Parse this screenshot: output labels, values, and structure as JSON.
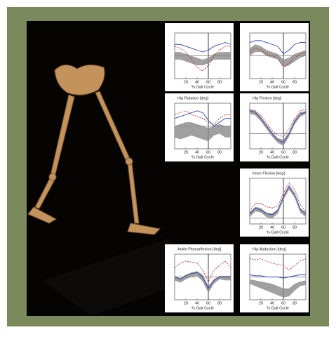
{
  "chart_data": [
    {
      "type": "line",
      "x_label": "% Gait Cycle",
      "x": [
        0,
        10,
        20,
        30,
        40,
        50,
        60,
        70,
        80,
        90,
        100
      ],
      "xlim": [
        0,
        100
      ],
      "xticks": [
        20,
        40,
        60,
        80
      ],
      "ylim": [
        -12,
        12
      ],
      "event_x": 60,
      "band_high": [
        2,
        2,
        1,
        0,
        -1,
        -2,
        -1,
        1,
        2,
        2,
        2
      ],
      "band_low": [
        -2,
        -2,
        -3,
        -4,
        -5,
        -5,
        -4,
        -2,
        -2,
        -2,
        -2
      ],
      "series": [
        {
          "color": "#c03030",
          "values": [
            5,
            4,
            2,
            -2,
            -6,
            -8,
            -5,
            0,
            3,
            5,
            5
          ]
        },
        {
          "color": "#3040b0",
          "values": [
            6,
            6,
            5,
            4,
            3,
            2,
            3,
            5,
            6,
            7,
            6
          ]
        }
      ]
    },
    {
      "type": "line",
      "x_label": "% Gait Cycle",
      "x": [
        0,
        10,
        20,
        30,
        40,
        50,
        60,
        70,
        80,
        90,
        100
      ],
      "xlim": [
        0,
        100
      ],
      "xticks": [
        20,
        40,
        60,
        80
      ],
      "ylim": [
        -12,
        12
      ],
      "event_x": 60,
      "band_high": [
        4,
        6,
        5,
        3,
        2,
        1,
        -2,
        -1,
        1,
        2,
        3
      ],
      "band_low": [
        0,
        2,
        2,
        0,
        -1,
        -2,
        -6,
        -5,
        -3,
        -1,
        0
      ],
      "series": [
        {
          "color": "#c03030",
          "values": [
            2,
            4,
            3,
            1,
            0,
            -1,
            -6,
            -4,
            -1,
            1,
            2
          ]
        },
        {
          "color": "#3040b0",
          "values": [
            7,
            8,
            8,
            7,
            6,
            5,
            1,
            3,
            6,
            7,
            7
          ]
        }
      ]
    },
    {
      "type": "line",
      "title": "Hip Rotation [deg]",
      "x_label": "% Gait Cycle",
      "x": [
        0,
        10,
        20,
        30,
        40,
        50,
        60,
        70,
        80,
        90,
        100
      ],
      "xlim": [
        0,
        100
      ],
      "xticks": [
        20,
        40,
        60,
        80
      ],
      "ylim": [
        -12,
        12
      ],
      "event_x": 60,
      "band_high": [
        0,
        1,
        2,
        2,
        1,
        0,
        -1,
        0,
        1,
        0,
        0
      ],
      "band_low": [
        -6,
        -7,
        -6,
        -5,
        -6,
        -7,
        -8,
        -5,
        -4,
        -6,
        -6
      ],
      "series": [
        {
          "color": "#c03030",
          "values": [
            6,
            7,
            8,
            6,
            5,
            4,
            2,
            1,
            4,
            6,
            6
          ]
        },
        {
          "color": "#3040b0",
          "values": [
            4,
            5,
            6,
            7,
            8,
            7,
            3,
            0,
            2,
            4,
            4
          ]
        }
      ]
    },
    {
      "type": "line",
      "title": "Hip Flexion [deg]",
      "x_label": "% Gait Cycle",
      "x": [
        0,
        10,
        20,
        30,
        40,
        50,
        60,
        70,
        80,
        90,
        100
      ],
      "xlim": [
        0,
        100
      ],
      "xticks": [
        20,
        40,
        60,
        80
      ],
      "ylim": [
        -20,
        40
      ],
      "event_x": 60,
      "band_high": [
        32,
        30,
        22,
        12,
        2,
        -6,
        -8,
        2,
        18,
        28,
        30
      ],
      "band_low": [
        26,
        24,
        16,
        6,
        -4,
        -12,
        -16,
        -4,
        12,
        22,
        26
      ],
      "series": [
        {
          "color": "#c03030",
          "values": [
            32,
            30,
            24,
            14,
            4,
            -2,
            -4,
            6,
            20,
            30,
            32
          ]
        },
        {
          "color": "#3040b0",
          "values": [
            30,
            28,
            20,
            10,
            0,
            -8,
            -12,
            0,
            16,
            26,
            28
          ]
        }
      ]
    },
    {
      "type": "line",
      "title": "Knee Flexion [deg]",
      "x_label": "% Gait Cycle",
      "x": [
        0,
        10,
        20,
        30,
        40,
        50,
        60,
        70,
        80,
        90,
        100
      ],
      "xlim": [
        0,
        100
      ],
      "xticks": [
        20,
        40,
        60,
        80
      ],
      "ylim": [
        -10,
        70
      ],
      "event_x": 60,
      "band_high": [
        10,
        20,
        18,
        10,
        8,
        16,
        40,
        58,
        44,
        18,
        10
      ],
      "band_low": [
        2,
        12,
        10,
        2,
        0,
        8,
        32,
        50,
        36,
        10,
        2
      ],
      "series": [
        {
          "color": "#c03030",
          "values": [
            12,
            26,
            26,
            20,
            18,
            22,
            44,
            62,
            50,
            24,
            12
          ]
        },
        {
          "color": "#3040b0",
          "values": [
            8,
            18,
            14,
            8,
            6,
            14,
            38,
            56,
            42,
            16,
            8
          ]
        }
      ]
    },
    {
      "type": "line",
      "title": "Ankle Plantarflexion [deg]",
      "x_label": "% Gait Cycle",
      "x": [
        0,
        10,
        20,
        30,
        40,
        50,
        60,
        70,
        80,
        90,
        100
      ],
      "xlim": [
        0,
        100
      ],
      "xticks": [
        20,
        40,
        60,
        80
      ],
      "ylim": [
        -20,
        20
      ],
      "event_x": 60,
      "band_high": [
        1,
        -1,
        2,
        4,
        5,
        2,
        -8,
        -2,
        1,
        1,
        1
      ],
      "band_low": [
        -3,
        -5,
        -2,
        0,
        1,
        -4,
        -14,
        -6,
        -2,
        -3,
        -3
      ],
      "series": [
        {
          "color": "#c03030",
          "values": [
            8,
            12,
            14,
            13,
            12,
            6,
            -4,
            6,
            10,
            14,
            8
          ]
        },
        {
          "color": "#3040b0",
          "values": [
            0,
            -2,
            1,
            3,
            4,
            0,
            -10,
            -3,
            0,
            0,
            0
          ]
        }
      ]
    },
    {
      "type": "line",
      "title": "Hip Abduction [deg]",
      "x_label": "% Gait Cycle",
      "x": [
        0,
        10,
        20,
        30,
        40,
        50,
        60,
        70,
        80,
        90,
        100
      ],
      "xlim": [
        0,
        100
      ],
      "xticks": [
        20,
        40,
        60,
        80
      ],
      "ylim": [
        -20,
        20
      ],
      "event_x": 60,
      "band_high": [
        -2,
        -3,
        -4,
        -5,
        -6,
        -8,
        -10,
        -10,
        -6,
        -4,
        -3
      ],
      "band_low": [
        -6,
        -8,
        -10,
        -12,
        -14,
        -16,
        -18,
        -17,
        -12,
        -8,
        -7
      ],
      "series": [
        {
          "color": "#c03030",
          "values": [
            16,
            15,
            16,
            14,
            12,
            11,
            10,
            6,
            10,
            14,
            16
          ]
        },
        {
          "color": "#3040b0",
          "values": [
            2,
            1,
            1,
            0,
            0,
            0,
            -1,
            0,
            1,
            2,
            2
          ]
        }
      ]
    }
  ]
}
